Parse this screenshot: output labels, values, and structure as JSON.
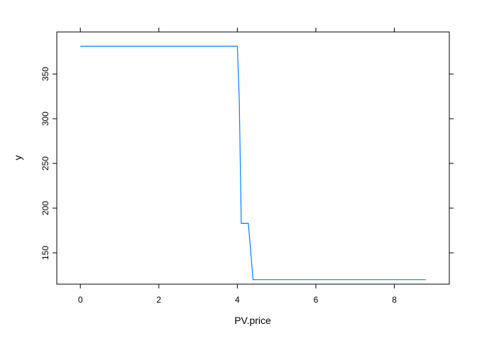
{
  "chart_data": {
    "type": "line",
    "title": "",
    "xlabel": "PV.price",
    "ylabel": "y",
    "xlim": [
      -0.6,
      9.4
    ],
    "ylim": [
      115,
      397
    ],
    "x_ticks": [
      0,
      2,
      4,
      6,
      8
    ],
    "y_ticks": [
      150,
      200,
      250,
      300,
      350
    ],
    "grid": false,
    "legend": "none",
    "line_color": "#0080ff",
    "series": [
      {
        "x": [
          0,
          4.0,
          4.05,
          4.1,
          4.28,
          4.4,
          8.8
        ],
        "y": [
          381,
          381,
          321,
          183,
          183,
          120,
          120
        ]
      }
    ]
  }
}
